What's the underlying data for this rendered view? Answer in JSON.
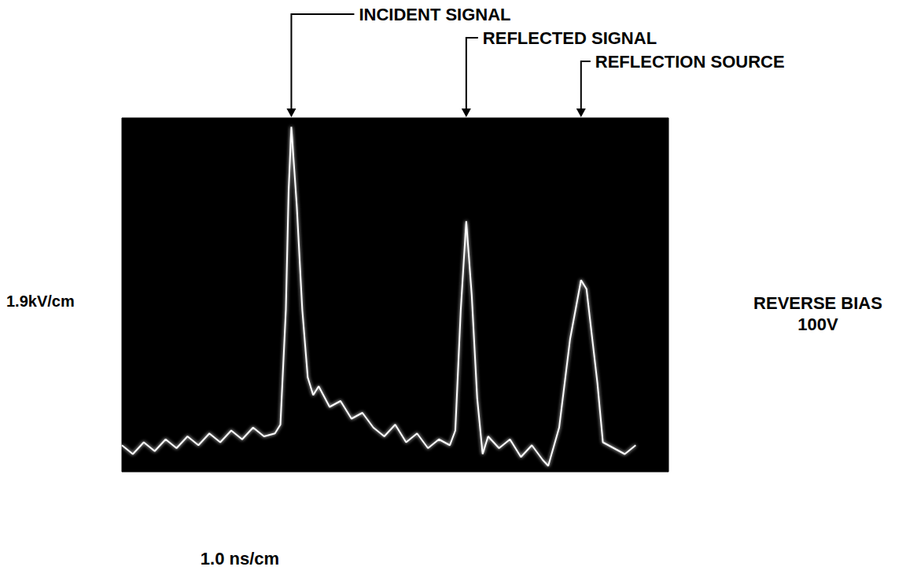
{
  "chart_data": {
    "type": "line",
    "x_label": "1.0 ns/cm",
    "y_label": "1.9kV/cm",
    "side_note": [
      "REVERSE BIAS",
      "100V"
    ],
    "annotations": [
      {
        "text": "INCIDENT SIGNAL",
        "x": 3.1
      },
      {
        "text": "REFLECTED SIGNAL",
        "x": 6.3
      },
      {
        "text": "REFLECTION SOURCE",
        "x": 8.4
      }
    ],
    "x": [
      0.0,
      0.2,
      0.4,
      0.6,
      0.8,
      1.0,
      1.2,
      1.4,
      1.6,
      1.8,
      2.0,
      2.2,
      2.4,
      2.6,
      2.8,
      2.9,
      3.0,
      3.05,
      3.1,
      3.2,
      3.3,
      3.4,
      3.5,
      3.6,
      3.8,
      4.0,
      4.2,
      4.4,
      4.6,
      4.8,
      5.0,
      5.2,
      5.4,
      5.6,
      5.8,
      6.0,
      6.1,
      6.2,
      6.3,
      6.4,
      6.5,
      6.6,
      6.7,
      6.9,
      7.1,
      7.3,
      7.5,
      7.7,
      7.8,
      8.0,
      8.2,
      8.4,
      8.5,
      8.7,
      8.8,
      9.0,
      9.2,
      9.4
    ],
    "values": [
      0.9,
      0.6,
      1.0,
      0.7,
      1.1,
      0.8,
      1.2,
      0.9,
      1.3,
      1.0,
      1.4,
      1.1,
      1.5,
      1.2,
      1.3,
      1.6,
      5.5,
      9.5,
      11.7,
      9.0,
      5.5,
      3.2,
      2.6,
      2.9,
      2.2,
      2.4,
      1.8,
      2.0,
      1.5,
      1.2,
      1.6,
      1.0,
      1.3,
      0.8,
      1.1,
      0.9,
      1.4,
      5.5,
      8.5,
      6.0,
      2.5,
      0.6,
      1.2,
      0.8,
      1.1,
      0.5,
      0.9,
      0.4,
      0.2,
      1.5,
      4.5,
      6.5,
      6.2,
      3.0,
      1.0,
      0.8,
      0.6,
      0.9
    ],
    "color": "#ffffff",
    "xlim": [
      0,
      10
    ],
    "ylim": [
      0,
      12
    ],
    "tick_labels": false,
    "grid": false
  }
}
